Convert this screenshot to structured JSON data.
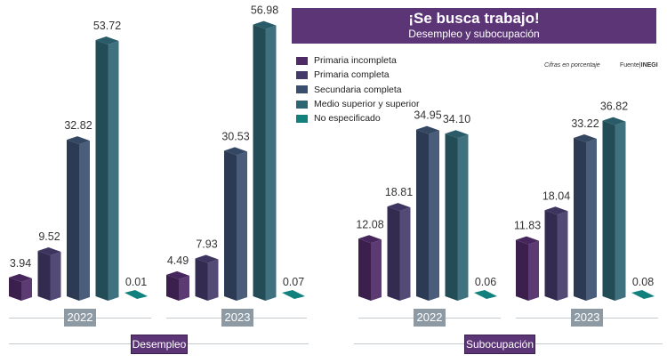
{
  "header": {
    "title": "¡Se busca trabajo!",
    "subtitle": "Desempleo y subocupación"
  },
  "notes": {
    "units": "Cifras en porcentaje",
    "source_label": "Fuente|",
    "source": "INEGI"
  },
  "colors": {
    "header": "#5b3575",
    "year_box": "#8d9aa4"
  },
  "chart_data": {
    "type": "bar",
    "series": [
      {
        "name": "Primaria incompleta",
        "color": "#4e2a66"
      },
      {
        "name": "Primaria completa",
        "color": "#443a6a"
      },
      {
        "name": "Secundaria completa",
        "color": "#3a4f6e"
      },
      {
        "name": "Medio superior y superior",
        "color": "#2e6574"
      },
      {
        "name": "No especificado",
        "color": "#12807c"
      }
    ],
    "panels": [
      {
        "label": "Desempleo",
        "groups": [
          {
            "year": "2022",
            "values": [
              3.94,
              9.52,
              32.82,
              53.72,
              0.01
            ],
            "labels": [
              "3.94",
              "9.52",
              "32.82",
              "53.72",
              "0.01"
            ]
          },
          {
            "year": "2023",
            "values": [
              4.49,
              7.93,
              30.53,
              56.98,
              0.07
            ],
            "labels": [
              "4.49",
              "7.93",
              "30.53",
              "56.98",
              "0.07"
            ]
          }
        ]
      },
      {
        "label": "Subocupación",
        "groups": [
          {
            "year": "2022",
            "values": [
              12.08,
              18.81,
              34.95,
              34.1,
              0.06
            ],
            "labels": [
              "12.08",
              "18.81",
              "34.95",
              "34.10",
              "0.06"
            ]
          },
          {
            "year": "2023",
            "values": [
              11.83,
              18.04,
              33.22,
              36.82,
              0.08
            ],
            "labels": [
              "11.83",
              "18.04",
              "33.22",
              "36.82",
              "0.08"
            ]
          }
        ]
      }
    ]
  }
}
